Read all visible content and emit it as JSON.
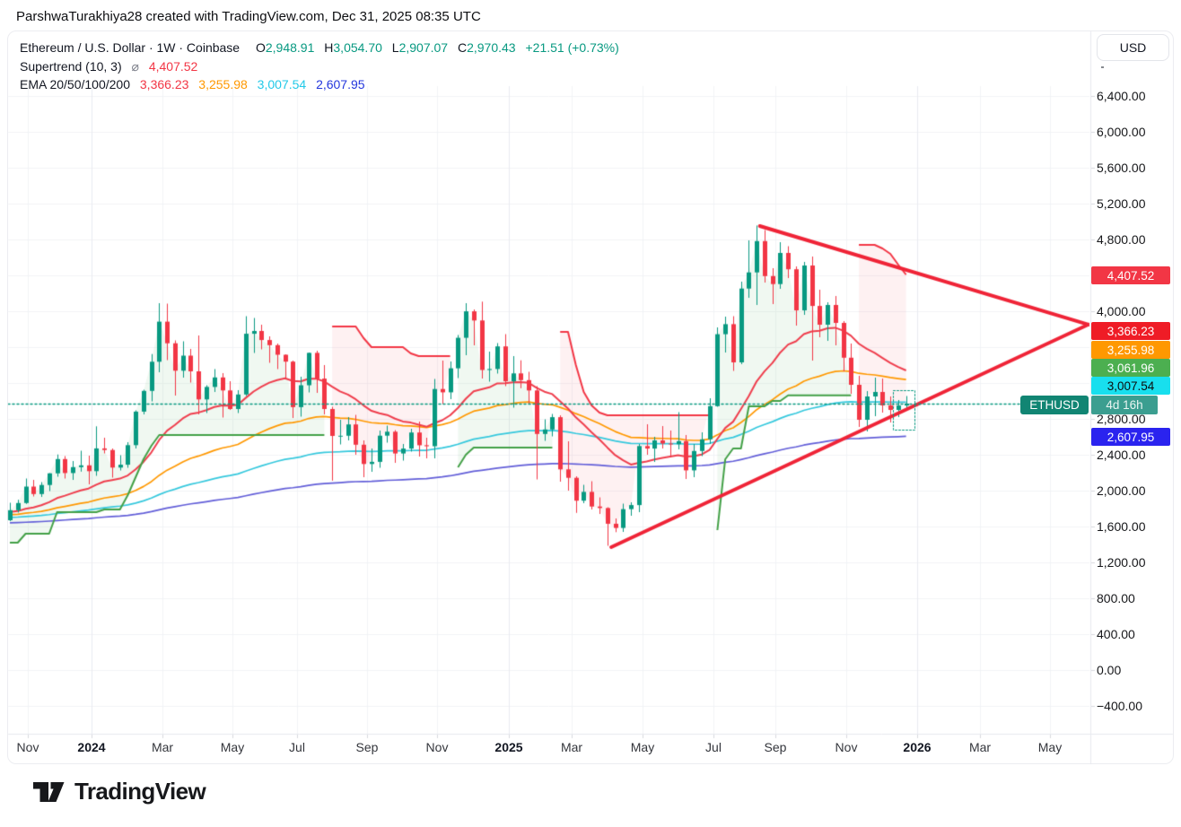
{
  "header": {
    "attribution": "ParshwaTurakhiya28 created with TradingView.com, Dec 31, 2025 08:35 UTC"
  },
  "legend": {
    "symbol_line": "Ethereum / U.S. Dollar · 1W · Coinbase",
    "ohlc": {
      "o_label": "O",
      "o": "2,948.91",
      "h_label": "H",
      "h": "3,054.70",
      "l_label": "L",
      "l": "2,907.07",
      "c_label": "C",
      "c": "2,970.43",
      "change": "+21.51 (+0.73%)"
    },
    "supertrend": {
      "label": "Supertrend (10, 3)",
      "avg_symbol": "⌀",
      "value": "4,407.52"
    },
    "ema": {
      "label": "EMA 20/50/100/200",
      "v1": "3,366.23",
      "v2": "3,255.98",
      "v3": "3,007.54",
      "v4": "2,607.95"
    }
  },
  "price_axis": {
    "currency": "USD",
    "ticks": [
      {
        "label": "6,400.00",
        "value": 6400
      },
      {
        "label": "6,000.00",
        "value": 6000
      },
      {
        "label": "5,600.00",
        "value": 5600
      },
      {
        "label": "5,200.00",
        "value": 5200
      },
      {
        "label": "4,800.00",
        "value": 4800
      },
      {
        "label": "4,000.00",
        "value": 4000
      },
      {
        "label": "2,800.00",
        "value": 2800
      },
      {
        "label": "2,400.00",
        "value": 2400
      },
      {
        "label": "2,000.00",
        "value": 2000
      },
      {
        "label": "1,600.00",
        "value": 1600
      },
      {
        "label": "1,200.00",
        "value": 1200
      },
      {
        "label": "800.00",
        "value": 800
      },
      {
        "label": "400.00",
        "value": 400
      },
      {
        "label": "0.00",
        "value": 0
      },
      {
        "label": "−400.00",
        "value": -400
      }
    ],
    "badges": [
      {
        "text": "4,407.52",
        "bg": "#f23645",
        "fg": "#ffffff",
        "name": "supertrend-down-badge"
      },
      {
        "text": "3,366.23",
        "bg": "#ef1c26",
        "fg": "#ffffff",
        "name": "ema20-badge"
      },
      {
        "text": "3,255.98",
        "bg": "#ff9800",
        "fg": "#ffffff",
        "name": "ema50-badge"
      },
      {
        "text": "3,061.96",
        "bg": "#4caf50",
        "fg": "#ffffff",
        "name": "supertrend-up-badge"
      },
      {
        "text": "3,007.54",
        "bg": "#18dfee",
        "fg": "#0c0d0e",
        "name": "ema100-badge"
      },
      {
        "text": "2,607.95",
        "bg": "#2a23ef",
        "fg": "#ffffff",
        "name": "ema200-badge"
      }
    ],
    "symbol_badge": {
      "ticker": "ETHUSD",
      "countdown": "4d 16h"
    }
  },
  "time_axis": {
    "labels": [
      {
        "text": "Nov",
        "bold": false
      },
      {
        "text": "2024",
        "bold": true
      },
      {
        "text": "Mar",
        "bold": false
      },
      {
        "text": "May",
        "bold": false
      },
      {
        "text": "Jul",
        "bold": false
      },
      {
        "text": "Sep",
        "bold": false
      },
      {
        "text": "Nov",
        "bold": false
      },
      {
        "text": "2025",
        "bold": true
      },
      {
        "text": "Mar",
        "bold": false
      },
      {
        "text": "May",
        "bold": false
      },
      {
        "text": "Jul",
        "bold": false
      },
      {
        "text": "Sep",
        "bold": false
      },
      {
        "text": "Nov",
        "bold": false
      },
      {
        "text": "2026",
        "bold": true
      },
      {
        "text": "Mar",
        "bold": false
      },
      {
        "text": "May",
        "bold": false
      }
    ]
  },
  "footer": {
    "brand": "TradingView"
  },
  "chart_data": {
    "type": "candlestick",
    "title": "Ethereum / U.S. Dollar",
    "ticker": "ETHUSD",
    "interval": "1W",
    "exchange": "Coinbase",
    "current_price": 2970.43,
    "ohlc_last": {
      "open": 2948.91,
      "high": 3054.7,
      "low": 2907.07,
      "close": 2970.43,
      "change": 21.51,
      "change_pct": 0.73
    },
    "y_axis": {
      "currency": "USD",
      "min": -400,
      "max": 6400,
      "step": 400
    },
    "weekly_candles": [
      [
        1670,
        1865,
        1660,
        1782
      ],
      [
        1782,
        1898,
        1756,
        1862
      ],
      [
        1862,
        2135,
        1852,
        2045
      ],
      [
        2045,
        2120,
        1935,
        1962
      ],
      [
        1962,
        2095,
        1930,
        2063
      ],
      [
        2063,
        2195,
        1995,
        2193
      ],
      [
        2193,
        2403,
        2155,
        2352
      ],
      [
        2352,
        2385,
        2135,
        2196
      ],
      [
        2196,
        2330,
        2120,
        2262
      ],
      [
        2262,
        2445,
        2212,
        2282
      ],
      [
        2282,
        2390,
        2070,
        2217
      ],
      [
        2217,
        2717,
        2165,
        2471
      ],
      [
        2471,
        2590,
        2415,
        2453
      ],
      [
        2453,
        2470,
        2145,
        2257
      ],
      [
        2257,
        2395,
        2225,
        2289
      ],
      [
        2289,
        2540,
        2255,
        2507
      ],
      [
        2507,
        2895,
        2470,
        2881
      ],
      [
        2881,
        3125,
        2850,
        3112
      ],
      [
        3112,
        3523,
        2995,
        3437
      ],
      [
        3437,
        4090,
        3320,
        3884
      ],
      [
        3884,
        4085,
        3455,
        3643
      ],
      [
        3643,
        3675,
        3060,
        3337
      ],
      [
        3337,
        3665,
        3260,
        3505
      ],
      [
        3505,
        3580,
        3205,
        3330
      ],
      [
        3330,
        3730,
        2850,
        3017
      ],
      [
        3017,
        3175,
        2865,
        3156
      ],
      [
        3156,
        3355,
        3100,
        3262
      ],
      [
        3262,
        3310,
        2815,
        3117
      ],
      [
        3117,
        3220,
        2900,
        2910
      ],
      [
        2910,
        3120,
        2865,
        3072
      ],
      [
        3072,
        3945,
        3055,
        3749
      ],
      [
        3749,
        3925,
        3535,
        3780
      ],
      [
        3780,
        3850,
        3575,
        3679
      ],
      [
        3679,
        3720,
        3425,
        3622
      ],
      [
        3622,
        3640,
        3355,
        3515
      ],
      [
        3515,
        3520,
        3240,
        3438
      ],
      [
        3438,
        3450,
        2810,
        2931
      ],
      [
        2931,
        3270,
        2825,
        3175
      ],
      [
        3175,
        3540,
        3095,
        3536
      ],
      [
        3536,
        3560,
        3090,
        3249
      ],
      [
        3249,
        3400,
        2850,
        2910
      ],
      [
        2910,
        2935,
        2111,
        2610
      ],
      [
        2610,
        2790,
        2515,
        2612
      ],
      [
        2612,
        2820,
        2560,
        2738
      ],
      [
        2738,
        2845,
        2400,
        2512
      ],
      [
        2512,
        2560,
        2150,
        2297
      ],
      [
        2297,
        2470,
        2210,
        2321
      ],
      [
        2321,
        2670,
        2255,
        2613
      ],
      [
        2613,
        2725,
        2535,
        2657
      ],
      [
        2657,
        2675,
        2310,
        2414
      ],
      [
        2414,
        2520,
        2335,
        2469
      ],
      [
        2469,
        2690,
        2435,
        2648
      ],
      [
        2648,
        2770,
        2380,
        2506
      ],
      [
        2506,
        2590,
        2360,
        2495
      ],
      [
        2495,
        3245,
        2360,
        3133
      ],
      [
        3133,
        3450,
        2965,
        3096
      ],
      [
        3096,
        3440,
        3020,
        3364
      ],
      [
        3364,
        3735,
        3255,
        3704
      ],
      [
        3704,
        4090,
        3510,
        3999
      ],
      [
        3999,
        4020,
        3620,
        3897
      ],
      [
        3897,
        4107,
        3250,
        3345
      ],
      [
        3345,
        3550,
        3215,
        3356
      ],
      [
        3356,
        3645,
        3305,
        3608
      ],
      [
        3608,
        3745,
        3165,
        3219
      ],
      [
        3219,
        3500,
        2925,
        3307
      ],
      [
        3307,
        3453,
        3142,
        3232
      ],
      [
        3232,
        3325,
        2970,
        3117
      ],
      [
        3117,
        3165,
        2125,
        2632
      ],
      [
        2632,
        2795,
        2555,
        2682
      ],
      [
        2682,
        2855,
        2605,
        2819
      ],
      [
        2819,
        2840,
        2100,
        2237
      ],
      [
        2237,
        2550,
        2000,
        2143
      ],
      [
        2143,
        2160,
        1752,
        1888
      ],
      [
        1888,
        2065,
        1860,
        1986
      ],
      [
        1986,
        2105,
        1790,
        1823
      ],
      [
        1823,
        1925,
        1740,
        1806
      ],
      [
        1806,
        1815,
        1385,
        1631
      ],
      [
        1631,
        1690,
        1537,
        1584
      ],
      [
        1584,
        1855,
        1540,
        1794
      ],
      [
        1794,
        1870,
        1720,
        1839
      ],
      [
        1839,
        2520,
        1760,
        2497
      ],
      [
        2497,
        2740,
        2400,
        2469
      ],
      [
        2469,
        2600,
        2320,
        2560
      ],
      [
        2560,
        2720,
        2470,
        2525
      ],
      [
        2525,
        2670,
        2370,
        2517
      ],
      [
        2517,
        2875,
        2460,
        2552
      ],
      [
        2552,
        2620,
        2130,
        2226
      ],
      [
        2226,
        2520,
        2150,
        2442
      ],
      [
        2442,
        2650,
        2385,
        2572
      ],
      [
        2572,
        3030,
        2520,
        2942
      ],
      [
        2942,
        3820,
        2935,
        3744
      ],
      [
        3744,
        3940,
        3540,
        3856
      ],
      [
        3856,
        3945,
        3335,
        3430
      ],
      [
        3430,
        4330,
        3410,
        4253
      ],
      [
        4253,
        4790,
        4150,
        4433
      ],
      [
        4433,
        4956,
        4070,
        4782
      ],
      [
        4782,
        4905,
        4320,
        4392
      ],
      [
        4392,
        4480,
        4080,
        4303
      ],
      [
        4303,
        4770,
        4250,
        4650
      ],
      [
        4650,
        4725,
        4370,
        4468
      ],
      [
        4468,
        4500,
        3840,
        4010
      ],
      [
        4010,
        4550,
        3960,
        4510
      ],
      [
        4510,
        4610,
        3450,
        4059
      ],
      [
        4059,
        4240,
        3710,
        3850
      ],
      [
        3850,
        4100,
        3670,
        4070
      ],
      [
        4070,
        4170,
        3620,
        3870
      ],
      [
        3870,
        3890,
        3330,
        3482
      ],
      [
        3482,
        3640,
        3080,
        3180
      ],
      [
        3180,
        3280,
        2710,
        2790
      ],
      [
        2790,
        3110,
        2660,
        3050
      ],
      [
        3050,
        3260,
        2830,
        3100
      ],
      [
        3100,
        3250,
        2870,
        2950
      ],
      [
        2950,
        3050,
        2760,
        2900
      ],
      [
        2900,
        3010,
        2820,
        2949
      ],
      [
        2948.91,
        3054.7,
        2907.07,
        2970.43
      ]
    ],
    "indicators": {
      "supertrend": {
        "label": "Supertrend (10, 3)",
        "down_value": 4407.52,
        "up_value": 3061.96,
        "segments": [
          {
            "dir": "up",
            "start": 0,
            "values": [
              1420,
              1420,
              1520,
              1520,
              1520,
              1520,
              1760,
              1760,
              1760,
              1760,
              1760,
              1760,
              1790,
              1790,
              1790,
              1950,
              2150,
              2350,
              2500,
              2620,
              2620,
              2620,
              2620,
              2620,
              2620,
              2620,
              2620,
              2620,
              2620,
              2620,
              2620,
              2620,
              2620,
              2620,
              2620,
              2620,
              2620,
              2620,
              2620,
              2620,
              2620
            ]
          },
          {
            "dir": "down",
            "start": 41,
            "values": [
              3830,
              3830,
              3830,
              3830,
              3700,
              3600,
              3600,
              3600,
              3600,
              3600,
              3530,
              3500,
              3500,
              3500,
              3500,
              3500
            ]
          },
          {
            "dir": "up",
            "start": 57,
            "values": [
              2260,
              2400,
              2480,
              2480,
              2480,
              2480,
              2480,
              2480,
              2480,
              2480,
              2480,
              2480,
              2480
            ]
          },
          {
            "dir": "down",
            "start": 70,
            "values": [
              3770,
              3770,
              3400,
              3100,
              2950,
              2870,
              2840,
              2840,
              2840,
              2840,
              2840,
              2840,
              2840,
              2840,
              2840,
              2840,
              2840,
              2840,
              2840,
              2840
            ]
          },
          {
            "dir": "up",
            "start": 90,
            "values": [
              1560,
              2350,
              2470,
              2470,
              2940,
              2940,
              2940,
              3000,
              3000,
              3061.96,
              3061.96,
              3061.96,
              3061.96,
              3061.96,
              3061.96,
              3061.96,
              3061.96,
              3061.96
            ]
          },
          {
            "dir": "down",
            "start": 108,
            "values": [
              4740,
              4740,
              4740,
              4700,
              4640,
              4520,
              4407.52
            ]
          }
        ]
      },
      "ema": {
        "label": "EMA 20/50/100/200",
        "periods": [
          20,
          50,
          100,
          200
        ],
        "last_values": [
          3366.23,
          3255.98,
          3007.54,
          2607.95
        ],
        "seeds": [
          1760,
          1730,
          1700,
          1640
        ]
      }
    },
    "trendlines": [
      {
        "name": "descending-resistance",
        "week1": 95.4,
        "price1": 4950,
        "week2": 137.2,
        "price2": 3852
      },
      {
        "name": "ascending-support",
        "week1": 76.5,
        "price1": 1370,
        "week2": 137.2,
        "price2": 3852
      }
    ],
    "colors": {
      "up_candle": "#089981",
      "down_candle": "#f23645",
      "ema20": "#ef3e4d",
      "ema50": "#ff9800",
      "ema100": "#35c8dd",
      "ema200": "#625ed8",
      "st_up_line": "#43a047",
      "st_down_line": "#f23645",
      "st_up_fill": "rgba(67,160,71,0.08)",
      "st_down_fill": "rgba(242,54,69,0.07)",
      "trendline": "#ef2437",
      "price_line": "#089981",
      "grid": "#f2f3f6"
    }
  }
}
